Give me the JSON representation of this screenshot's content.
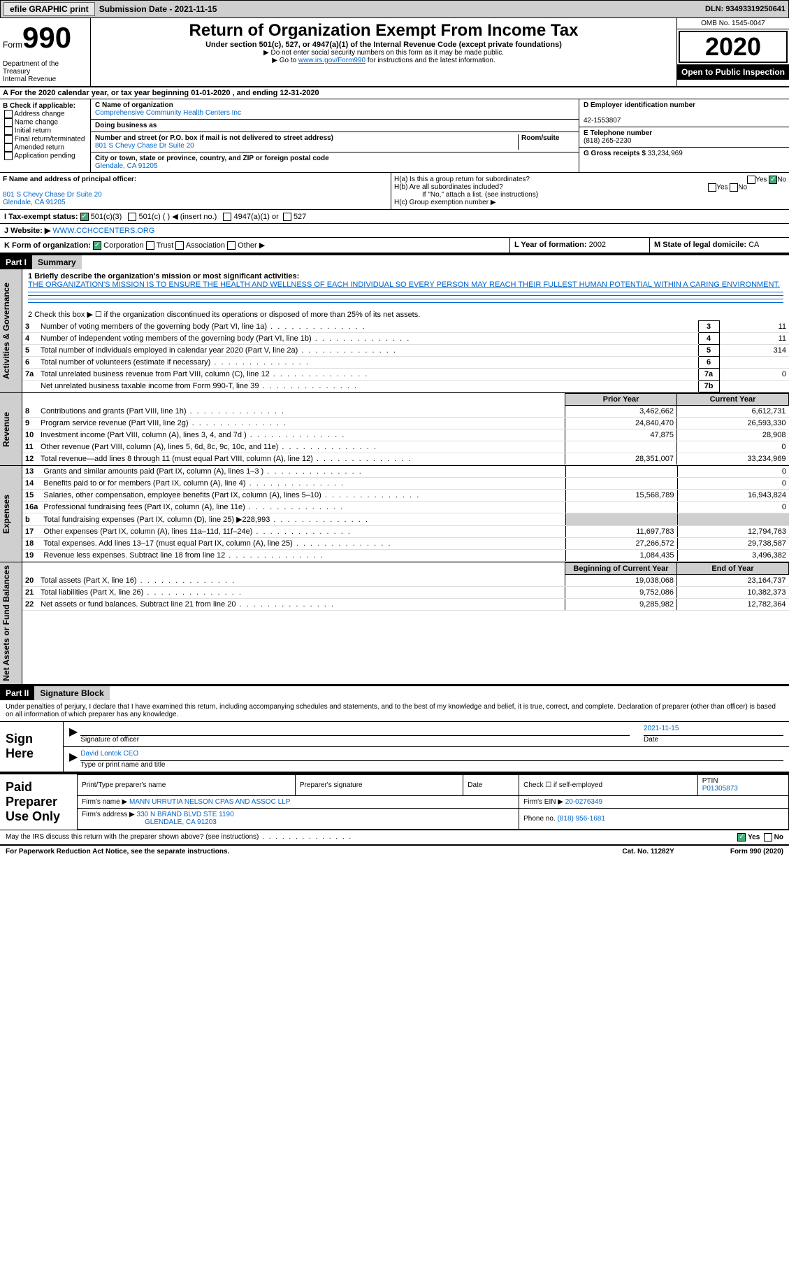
{
  "topbar": {
    "efile": "efile GRAPHIC print",
    "sub_lbl": "Submission Date - ",
    "sub_date": "2021-11-15",
    "dln": "DLN: 93493319250641"
  },
  "header": {
    "form_word": "Form",
    "form_num": "990",
    "dept": "Department of the Treasury\nInternal Revenue",
    "title": "Return of Organization Exempt From Income Tax",
    "sub1": "Under section 501(c), 527, or 4947(a)(1) of the Internal Revenue Code (except private foundations)",
    "sub2": "▶ Do not enter social security numbers on this form as it may be made public.",
    "sub3_pre": "▶ Go to ",
    "sub3_link": "www.irs.gov/Form990",
    "sub3_post": " for instructions and the latest information.",
    "omb": "OMB No. 1545-0047",
    "year": "2020",
    "open": "Open to Public Inspection"
  },
  "line_a": "A For the 2020 calendar year, or tax year beginning 01-01-2020   , and ending 12-31-2020",
  "b": {
    "hdr": "B Check if applicable:",
    "opts": [
      "Address change",
      "Name change",
      "Initial return",
      "Final return/terminated",
      "Amended return",
      "Application pending"
    ]
  },
  "c": {
    "name_lbl": "C Name of organization",
    "name": "Comprehensive Community Health Centers Inc",
    "dba_lbl": "Doing business as",
    "addr_lbl": "Number and street (or P.O. box if mail is not delivered to street address)",
    "room_lbl": "Room/suite",
    "addr": "801 S Chevy Chase Dr Suite 20",
    "city_lbl": "City or town, state or province, country, and ZIP or foreign postal code",
    "city": "Glendale, CA  91205"
  },
  "d": {
    "lbl": "D Employer identification number",
    "val": "42-1553807"
  },
  "e": {
    "lbl": "E Telephone number",
    "val": "(818) 265-2230"
  },
  "g": {
    "lbl": "G Gross receipts $",
    "val": "33,234,969"
  },
  "f": {
    "lbl": "F  Name and address of principal officer:",
    "addr": "801 S Chevy Chase Dr Suite 20\nGlendale, CA  91205"
  },
  "h": {
    "a": "H(a)  Is this a group return for subordinates?",
    "b": "H(b)  Are all subordinates included?",
    "note": "If \"No,\" attach a list. (see instructions)",
    "c": "H(c)  Group exemption number ▶",
    "yes": "Yes",
    "no": "No"
  },
  "i": {
    "lbl": "I    Tax-exempt status:",
    "o1": "501(c)(3)",
    "o2": "501(c) (  ) ◀ (insert no.)",
    "o3": "4947(a)(1) or",
    "o4": "527"
  },
  "j": {
    "lbl": "J   Website: ▶ ",
    "val": "WWW.CCHCCENTERS.ORG"
  },
  "k": {
    "lbl": "K Form of organization:",
    "o1": "Corporation",
    "o2": "Trust",
    "o3": "Association",
    "o4": "Other ▶"
  },
  "l": {
    "lbl": "L Year of formation:",
    "val": "2002"
  },
  "m": {
    "lbl": "M State of legal domicile:",
    "val": "CA"
  },
  "part1": {
    "num": "Part I",
    "title": "Summary"
  },
  "mission": {
    "q": "1   Briefly describe the organization's mission or most significant activities:",
    "txt": "THE ORGANIZATION'S MISSION IS TO ENSURE THE HEALTH AND WELLNESS OF EACH INDIVIDUAL SO EVERY PERSON MAY REACH THEIR FULLEST HUMAN POTENTIAL WITHIN A CARING ENVIRONMENT."
  },
  "gov_lines": {
    "l2": "2   Check this box ▶ ☐  if the organization discontinued its operations or disposed of more than 25% of its net assets.",
    "rows": [
      {
        "n": "3",
        "d": "Number of voting members of the governing body (Part VI, line 1a)",
        "box": "3",
        "v": "11"
      },
      {
        "n": "4",
        "d": "Number of independent voting members of the governing body (Part VI, line 1b)",
        "box": "4",
        "v": "11"
      },
      {
        "n": "5",
        "d": "Total number of individuals employed in calendar year 2020 (Part V, line 2a)",
        "box": "5",
        "v": "314"
      },
      {
        "n": "6",
        "d": "Total number of volunteers (estimate if necessary)",
        "box": "6",
        "v": ""
      },
      {
        "n": "7a",
        "d": "Total unrelated business revenue from Part VIII, column (C), line 12",
        "box": "7a",
        "v": "0"
      },
      {
        "n": "",
        "d": "Net unrelated business taxable income from Form 990-T, line 39",
        "box": "7b",
        "v": ""
      }
    ]
  },
  "sidebars": {
    "gov": "Activities & Governance",
    "rev": "Revenue",
    "exp": "Expenses",
    "net": "Net Assets or Fund Balances"
  },
  "fin_hdr": {
    "prior": "Prior Year",
    "curr": "Current Year"
  },
  "revenue": [
    {
      "n": "8",
      "d": "Contributions and grants (Part VIII, line 1h)",
      "p": "3,462,662",
      "c": "6,612,731"
    },
    {
      "n": "9",
      "d": "Program service revenue (Part VIII, line 2g)",
      "p": "24,840,470",
      "c": "26,593,330"
    },
    {
      "n": "10",
      "d": "Investment income (Part VIII, column (A), lines 3, 4, and 7d )",
      "p": "47,875",
      "c": "28,908"
    },
    {
      "n": "11",
      "d": "Other revenue (Part VIII, column (A), lines 5, 6d, 8c, 9c, 10c, and 11e)",
      "p": "",
      "c": "0"
    },
    {
      "n": "12",
      "d": "Total revenue—add lines 8 through 11 (must equal Part VIII, column (A), line 12)",
      "p": "28,351,007",
      "c": "33,234,969"
    }
  ],
  "expenses": [
    {
      "n": "13",
      "d": "Grants and similar amounts paid (Part IX, column (A), lines 1–3 )",
      "p": "",
      "c": "0"
    },
    {
      "n": "14",
      "d": "Benefits paid to or for members (Part IX, column (A), line 4)",
      "p": "",
      "c": "0"
    },
    {
      "n": "15",
      "d": "Salaries, other compensation, employee benefits (Part IX, column (A), lines 5–10)",
      "p": "15,568,789",
      "c": "16,943,824"
    },
    {
      "n": "16a",
      "d": "Professional fundraising fees (Part IX, column (A), line 11e)",
      "p": "",
      "c": "0"
    },
    {
      "n": "b",
      "d": "Total fundraising expenses (Part IX, column (D), line 25) ▶228,993",
      "p": "shade",
      "c": "shade"
    },
    {
      "n": "17",
      "d": "Other expenses (Part IX, column (A), lines 11a–11d, 11f–24e)",
      "p": "11,697,783",
      "c": "12,794,763"
    },
    {
      "n": "18",
      "d": "Total expenses. Add lines 13–17 (must equal Part IX, column (A), line 25)",
      "p": "27,266,572",
      "c": "29,738,587"
    },
    {
      "n": "19",
      "d": "Revenue less expenses. Subtract line 18 from line 12",
      "p": "1,084,435",
      "c": "3,496,382"
    }
  ],
  "net_hdr": {
    "prior": "Beginning of Current Year",
    "curr": "End of Year"
  },
  "net": [
    {
      "n": "20",
      "d": "Total assets (Part X, line 16)",
      "p": "19,038,068",
      "c": "23,164,737"
    },
    {
      "n": "21",
      "d": "Total liabilities (Part X, line 26)",
      "p": "9,752,086",
      "c": "10,382,373"
    },
    {
      "n": "22",
      "d": "Net assets or fund balances. Subtract line 21 from line 20",
      "p": "9,285,982",
      "c": "12,782,364"
    }
  ],
  "part2": {
    "num": "Part II",
    "title": "Signature Block"
  },
  "sig": {
    "decl": "Under penalties of perjury, I declare that I have examined this return, including accompanying schedules and statements, and to the best of my knowledge and belief, it is true, correct, and complete. Declaration of preparer (other than officer) is based on all information of which preparer has any knowledge.",
    "here": "Sign Here",
    "sig_lbl": "Signature of officer",
    "date": "2021-11-15",
    "date_lbl": "Date",
    "name": "David Lontok CEO",
    "name_lbl": "Type or print name and title"
  },
  "paid": {
    "hdr": "Paid Preparer Use Only",
    "r1": {
      "a": "Print/Type preparer's name",
      "b": "Preparer's signature",
      "c": "Date",
      "d": "Check ☐ if self-employed",
      "e": "PTIN",
      "ev": "P01305873"
    },
    "r2": {
      "a": "Firm's name    ▶",
      "av": "MANN URRUTIA NELSON CPAS AND ASSOC LLP",
      "b": "Firm's EIN ▶",
      "bv": "20-0276349"
    },
    "r3": {
      "a": "Firm's address ▶",
      "av": "330 N BRAND BLVD STE 1190",
      "av2": "GLENDALE, CA  91203",
      "b": "Phone no.",
      "bv": "(818) 956-1681"
    }
  },
  "irs_q": "May the IRS discuss this return with the preparer shown above? (see instructions)",
  "footer": {
    "left": "For Paperwork Reduction Act Notice, see the separate instructions.",
    "mid": "Cat. No. 11282Y",
    "right": "Form 990 (2020)"
  }
}
